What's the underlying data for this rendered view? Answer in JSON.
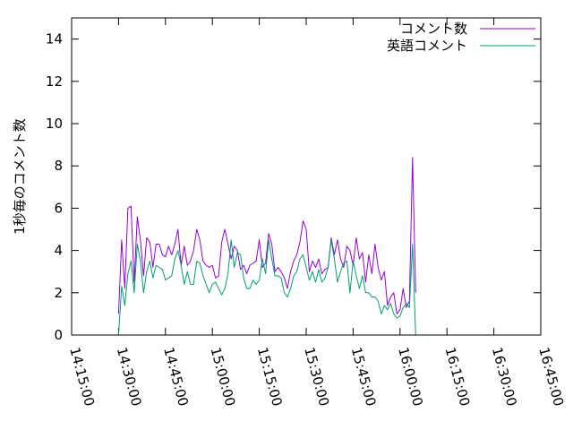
{
  "chart_data": {
    "type": "line",
    "title": "",
    "xlabel": "",
    "ylabel": "1秒毎のコメント数",
    "ylim": [
      0,
      15
    ],
    "y_ticks": [
      0,
      2,
      4,
      6,
      8,
      10,
      12,
      14
    ],
    "x_ticks": [
      "14:15:00",
      "14:30:00",
      "14:45:00",
      "15:00:00",
      "15:15:00",
      "15:30:00",
      "15:45:00",
      "16:00:00",
      "16:15:00",
      "16:30:00",
      "16:45:00"
    ],
    "xlim_minutes": [
      855,
      1005
    ],
    "legend_position": "top-right",
    "grid": false,
    "x_start_minute": 870,
    "x_step_minutes": 1,
    "series": [
      {
        "name": "コメント数",
        "color": "#9400d3",
        "values": [
          1.0,
          4.5,
          2.2,
          6.0,
          6.1,
          2.5,
          5.6,
          4.5,
          2.8,
          4.6,
          4.4,
          3.2,
          4.3,
          4.3,
          3.8,
          3.7,
          4.2,
          3.8,
          4.3,
          5.0,
          3.3,
          4.2,
          3.3,
          3.5,
          4.0,
          5.0,
          4.5,
          3.5,
          3.3,
          3.2,
          3.3,
          2.7,
          2.8,
          4.4,
          5.0,
          4.3,
          3.6,
          4.2,
          4.0,
          3.1,
          3.3,
          2.9,
          3.3,
          3.4,
          3.5,
          4.5,
          3.2,
          3.4,
          4.8,
          4.3,
          3.0,
          3.2,
          3.0,
          2.7,
          2.2,
          3.0,
          3.5,
          3.8,
          4.4,
          5.4,
          5.0,
          3.0,
          3.5,
          3.2,
          3.6,
          2.9,
          3.1,
          3.2,
          4.6,
          3.8,
          4.5,
          3.6,
          3.2,
          4.2,
          4.0,
          3.3,
          4.6,
          3.6,
          3.9,
          2.5,
          3.8,
          2.9,
          4.3,
          3.2,
          2.6,
          3.0,
          1.4,
          1.8,
          2.0,
          1.0,
          1.2,
          2.2,
          1.3,
          1.6,
          8.4,
          2.0
        ]
      },
      {
        "name": "英語コメント",
        "color": "#009e73",
        "values": [
          0.0,
          2.3,
          1.4,
          2.9,
          3.5,
          2.0,
          4.3,
          3.5,
          2.0,
          3.0,
          3.5,
          2.7,
          3.3,
          3.2,
          3.1,
          2.6,
          2.7,
          2.8,
          3.6,
          4.0,
          3.3,
          2.4,
          3.0,
          2.4,
          2.4,
          3.5,
          3.4,
          2.8,
          2.4,
          2.0,
          2.4,
          2.5,
          2.2,
          1.9,
          2.2,
          2.9,
          4.5,
          3.2,
          3.9,
          3.8,
          2.7,
          2.2,
          2.2,
          2.6,
          2.4,
          2.6,
          3.6,
          2.9,
          4.5,
          3.6,
          2.8,
          2.8,
          2.7,
          2.0,
          1.8,
          2.2,
          2.8,
          3.0,
          3.6,
          3.8,
          3.2,
          2.6,
          3.0,
          2.5,
          3.1,
          2.5,
          2.7,
          3.2,
          4.5,
          3.6,
          2.5,
          3.0,
          3.4,
          3.5,
          2.0,
          3.5,
          2.8,
          2.2,
          2.8,
          2.0,
          2.0,
          1.8,
          1.8,
          1.6,
          1.0,
          1.4,
          1.2,
          1.5,
          1.0,
          0.8,
          0.9,
          1.3,
          1.5,
          1.3,
          4.3,
          0.0
        ]
      }
    ]
  }
}
